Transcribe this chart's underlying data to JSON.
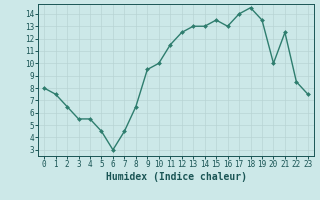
{
  "x": [
    0,
    1,
    2,
    3,
    4,
    5,
    6,
    7,
    8,
    9,
    10,
    11,
    12,
    13,
    14,
    15,
    16,
    17,
    18,
    19,
    20,
    21,
    22,
    23
  ],
  "y": [
    8,
    7.5,
    6.5,
    5.5,
    5.5,
    4.5,
    3,
    4.5,
    6.5,
    9.5,
    10,
    11.5,
    12.5,
    13,
    13,
    13.5,
    13,
    14,
    14.5,
    13.5,
    10,
    12.5,
    8.5,
    7.5
  ],
  "line_color": "#2e7d6e",
  "marker": "D",
  "marker_size": 2.0,
  "line_width": 1.0,
  "xlabel": "Humidex (Indice chaleur)",
  "xlim": [
    -0.5,
    23.5
  ],
  "ylim": [
    2.5,
    14.8
  ],
  "xticks": [
    0,
    1,
    2,
    3,
    4,
    5,
    6,
    7,
    8,
    9,
    10,
    11,
    12,
    13,
    14,
    15,
    16,
    17,
    18,
    19,
    20,
    21,
    22,
    23
  ],
  "yticks": [
    3,
    4,
    5,
    6,
    7,
    8,
    9,
    10,
    11,
    12,
    13,
    14
  ],
  "bg_color": "#cce8e8",
  "grid_color": "#b8d4d4",
  "tick_label_fontsize": 5.5,
  "xlabel_fontsize": 7.0,
  "tick_color": "#1a5555",
  "spine_color": "#1a5555"
}
